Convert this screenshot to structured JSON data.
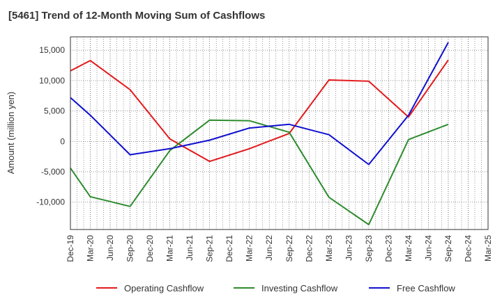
{
  "chart_data": {
    "type": "line",
    "title": "[5461]  Trend of 12-Month Moving Sum of Cashflows",
    "ylabel": "Amount (million yen)",
    "xlabel": "",
    "categories": [
      "Dec-19",
      "Mar-20",
      "Jun-20",
      "Sep-20",
      "Dec-20",
      "Mar-21",
      "Jun-21",
      "Sep-21",
      "Dec-21",
      "Mar-22",
      "Jun-22",
      "Sep-22",
      "Dec-22",
      "Mar-23",
      "Jun-23",
      "Sep-23",
      "Dec-23",
      "Mar-24",
      "Jun-24",
      "Sep-24",
      "Dec-24",
      "Mar-25"
    ],
    "ylim": [
      -14500,
      17200
    ],
    "yticks": [
      15000,
      10000,
      5000,
      0,
      -5000,
      -10000
    ],
    "ytick_labels": [
      "15,000",
      "10,000",
      "5,000",
      "0",
      "-5,000",
      "-10,000"
    ],
    "grid": true,
    "legend_position": "bottom",
    "series": [
      {
        "name": "Operating Cashflow",
        "color": "#e31a1c",
        "values": [
          11600,
          13300,
          null,
          8500,
          null,
          400,
          null,
          -3300,
          null,
          -1200,
          null,
          1300,
          null,
          10100,
          null,
          9900,
          null,
          4000,
          null,
          13400,
          null,
          null
        ]
      },
      {
        "name": "Investing Cashflow",
        "color": "#2e8b2e",
        "values": [
          -4400,
          -9100,
          null,
          -10700,
          null,
          -1500,
          null,
          3500,
          null,
          3400,
          null,
          1500,
          null,
          -9200,
          null,
          -13700,
          null,
          300,
          null,
          2800,
          null,
          null
        ]
      },
      {
        "name": "Free Cashflow",
        "color": "#1010d0",
        "values": [
          7200,
          4300,
          null,
          -2200,
          null,
          -1200,
          null,
          200,
          null,
          2200,
          null,
          2800,
          null,
          1100,
          null,
          -3800,
          null,
          4300,
          null,
          16300,
          null,
          null
        ]
      }
    ]
  }
}
